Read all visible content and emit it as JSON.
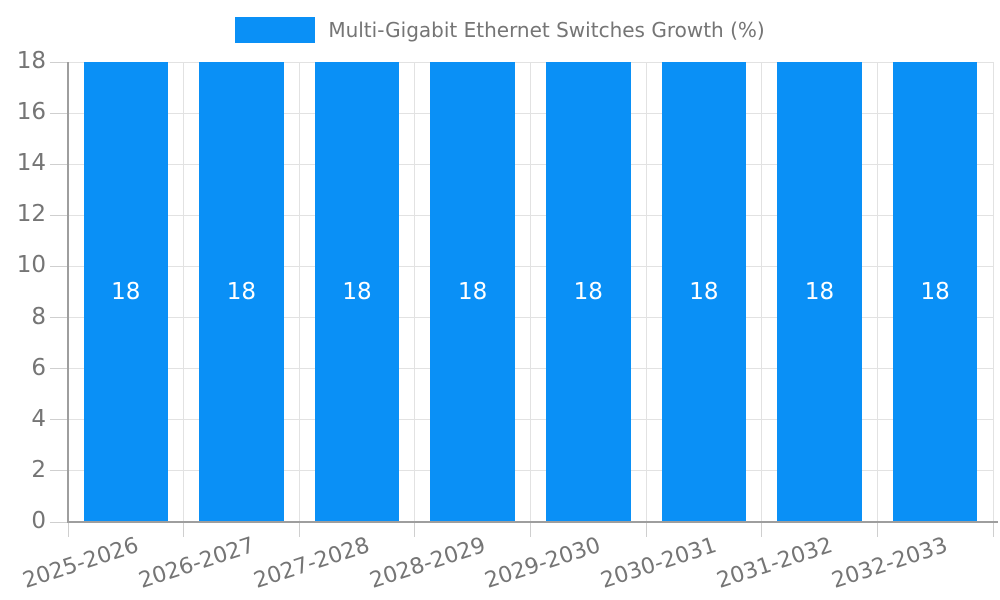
{
  "chart_data": {
    "type": "bar",
    "title": "Multi-Gigabit Ethernet Switches Growth (%)",
    "categories": [
      "2025-2026",
      "2026-2027",
      "2027-2028",
      "2028-2029",
      "2029-2030",
      "2030-2031",
      "2031-2032",
      "2032-2033"
    ],
    "values": [
      18,
      18,
      18,
      18,
      18,
      18,
      18,
      18
    ],
    "bar_value_labels": [
      "18",
      "18",
      "18",
      "18",
      "18",
      "18",
      "18",
      "18"
    ],
    "xlabel": "",
    "ylabel": "",
    "ylim": [
      0,
      18
    ],
    "yticks": [
      0,
      2,
      4,
      6,
      8,
      10,
      12,
      14,
      16,
      18
    ],
    "grid": true,
    "legend_position": "top-center",
    "bar_color": "#0a90f6",
    "bar_label_color": "#ffffff",
    "axis_text_color": "#757575",
    "gridline_color": "#e2e2e2",
    "axis_line_color": "#9e9e9e",
    "tick_color": "#cfcfcf"
  }
}
